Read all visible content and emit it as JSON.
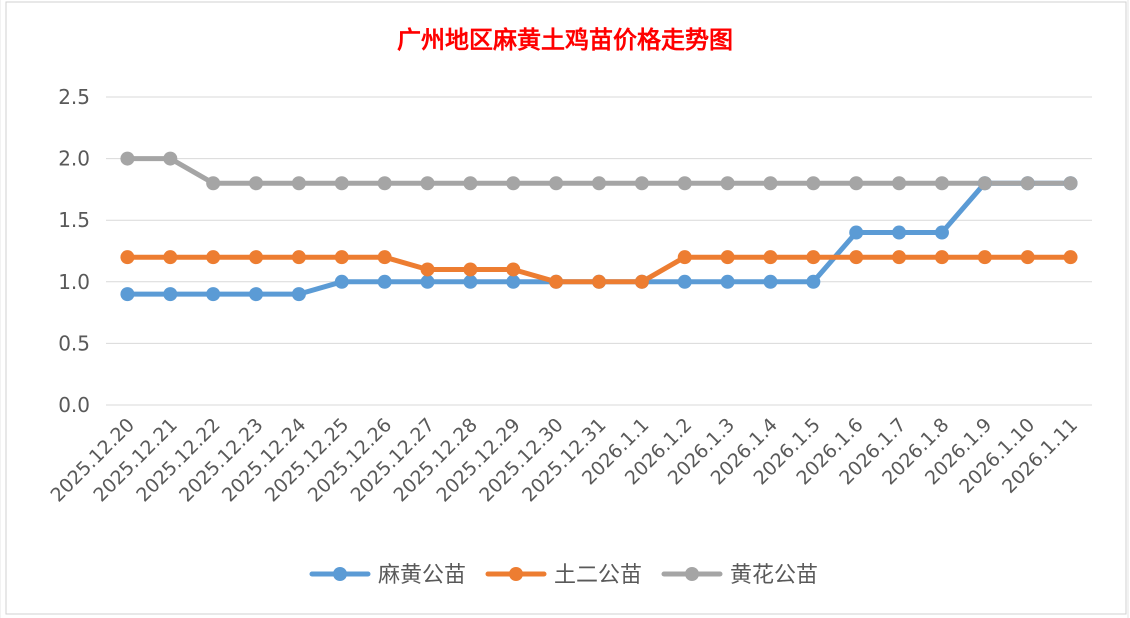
{
  "colors": {
    "title": "#ff0000",
    "gridline": "#d9d9d9",
    "sheet_grid": "#e6e6e6",
    "border": "#d0d0d0",
    "axis_text": "#595959"
  },
  "chart_data": {
    "type": "line",
    "title": "广州地区麻黄土鸡苗价格走势图",
    "xlabel": "",
    "ylabel": "",
    "ylim": [
      0,
      2.5
    ],
    "yticks": [
      "0.0",
      "0.5",
      "1.0",
      "1.5",
      "2.0",
      "2.5"
    ],
    "grid": true,
    "legend_position": "bottom",
    "categories": [
      "2025.12.20",
      "2025.12.21",
      "2025.12.22",
      "2025.12.23",
      "2025.12.24",
      "2025.12.25",
      "2025.12.26",
      "2025.12.27",
      "2025.12.28",
      "2025.12.29",
      "2025.12.30",
      "2025.12.31",
      "2026.1.1",
      "2026.1.2",
      "2026.1.3",
      "2026.1.4",
      "2026.1.5",
      "2026.1.6",
      "2026.1.7",
      "2026.1.8",
      "2026.1.9",
      "2026.1.10",
      "2026.1.11"
    ],
    "series": [
      {
        "name": "麻黄公苗",
        "color": "#5b9bd5",
        "values": [
          0.9,
          0.9,
          0.9,
          0.9,
          0.9,
          1.0,
          1.0,
          1.0,
          1.0,
          1.0,
          1.0,
          1.0,
          1.0,
          1.0,
          1.0,
          1.0,
          1.0,
          1.4,
          1.4,
          1.4,
          1.8,
          1.8,
          1.8
        ]
      },
      {
        "name": "土二公苗",
        "color": "#ed7d31",
        "values": [
          1.2,
          1.2,
          1.2,
          1.2,
          1.2,
          1.2,
          1.2,
          1.1,
          1.1,
          1.1,
          1.0,
          1.0,
          1.0,
          1.2,
          1.2,
          1.2,
          1.2,
          1.2,
          1.2,
          1.2,
          1.2,
          1.2,
          1.2
        ]
      },
      {
        "name": "黄花公苗",
        "color": "#a5a5a5",
        "values": [
          2.0,
          2.0,
          1.8,
          1.8,
          1.8,
          1.8,
          1.8,
          1.8,
          1.8,
          1.8,
          1.8,
          1.8,
          1.8,
          1.8,
          1.8,
          1.8,
          1.8,
          1.8,
          1.8,
          1.8,
          1.8,
          1.8,
          1.8
        ]
      }
    ]
  }
}
